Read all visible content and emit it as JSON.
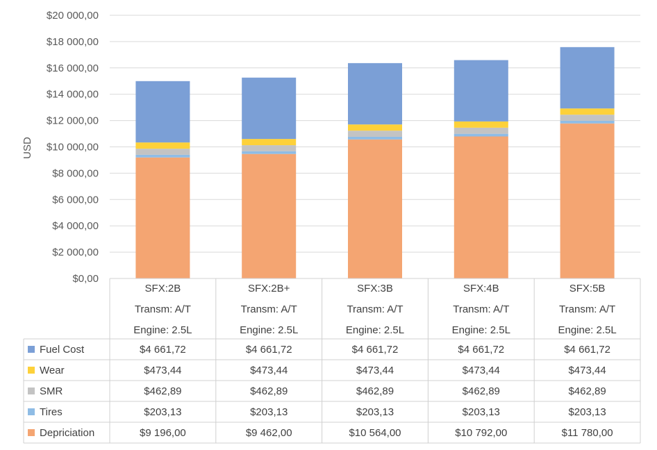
{
  "chart_data": {
    "type": "bar",
    "stacked": true,
    "ylabel": "USD",
    "ylim": [
      0,
      20000
    ],
    "y_ticks": [
      "$0,00",
      "$2 000,00",
      "$4 000,00",
      "$6 000,00",
      "$8 000,00",
      "$10 000,00",
      "$12 000,00",
      "$14 000,00",
      "$16 000,00",
      "$18 000,00",
      "$20 000,00"
    ],
    "grid": true,
    "legend": "data-table",
    "categories": [
      [
        "SFX:2B",
        "Transm: A/T",
        "Engine: 2.5L"
      ],
      [
        "SFX:2B+",
        "Transm: A/T",
        "Engine: 2.5L"
      ],
      [
        "SFX:3B",
        "Transm: A/T",
        "Engine: 2.5L"
      ],
      [
        "SFX:4B",
        "Transm: A/T",
        "Engine: 2.5L"
      ],
      [
        "SFX:5B",
        "Transm: A/T",
        "Engine: 2.5L"
      ]
    ],
    "series": [
      {
        "name": "Depriciation",
        "color": "#f4a572",
        "values": [
          9196.0,
          9462.0,
          10564.0,
          10792.0,
          11780.0
        ],
        "labels": [
          "$9 196,00",
          "$9 462,00",
          "$10 564,00",
          "$10 792,00",
          "$11 780,00"
        ]
      },
      {
        "name": "Tires",
        "color": "#8fbce5",
        "values": [
          203.13,
          203.13,
          203.13,
          203.13,
          203.13
        ],
        "labels": [
          "$203,13",
          "$203,13",
          "$203,13",
          "$203,13",
          "$203,13"
        ]
      },
      {
        "name": "SMR",
        "color": "#c3c3c3",
        "values": [
          462.89,
          462.89,
          462.89,
          462.89,
          462.89
        ],
        "labels": [
          "$462,89",
          "$462,89",
          "$462,89",
          "$462,89",
          "$462,89"
        ]
      },
      {
        "name": "Wear",
        "color": "#fdd13a",
        "values": [
          473.44,
          473.44,
          473.44,
          473.44,
          473.44
        ],
        "labels": [
          "$473,44",
          "$473,44",
          "$473,44",
          "$473,44",
          "$473,44"
        ]
      },
      {
        "name": "Fuel Cost",
        "color": "#7b9fd6",
        "values": [
          4661.72,
          4661.72,
          4661.72,
          4661.72,
          4661.72
        ],
        "labels": [
          "$4 661,72",
          "$4 661,72",
          "$4 661,72",
          "$4 661,72",
          "$4 661,72"
        ]
      }
    ],
    "table_order": [
      "Fuel Cost",
      "Wear",
      "SMR",
      "Tires",
      "Depriciation"
    ]
  }
}
